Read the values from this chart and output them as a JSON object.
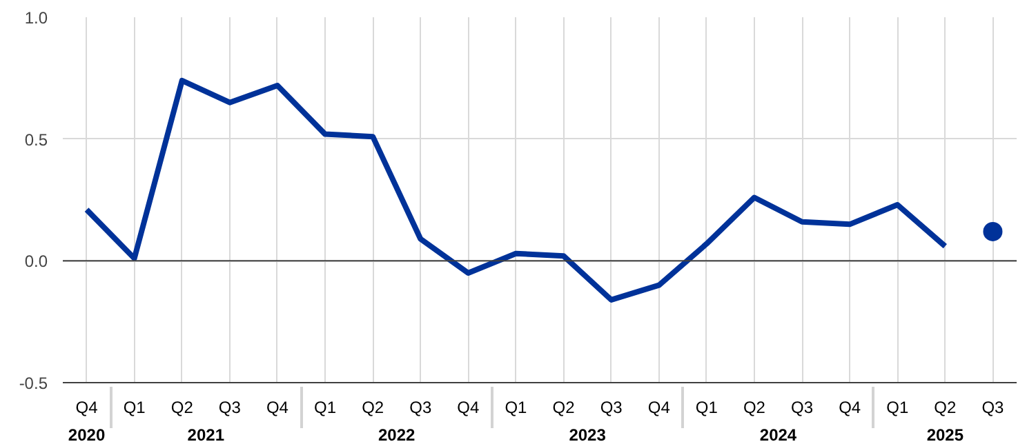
{
  "chart_data": {
    "type": "line",
    "categories": [
      "Q4",
      "Q1",
      "Q2",
      "Q3",
      "Q4",
      "Q1",
      "Q2",
      "Q3",
      "Q4",
      "Q1",
      "Q2",
      "Q3",
      "Q4",
      "Q1",
      "Q2",
      "Q3",
      "Q4",
      "Q1",
      "Q2",
      "Q3"
    ],
    "annotations": [
      "2020",
      "2021",
      "2022",
      "2023",
      "2024",
      "2025"
    ],
    "series": [
      {
        "type": "line",
        "color": "#003299",
        "values": [
          0.21,
          0.01,
          0.74,
          0.65,
          0.72,
          0.52,
          0.51,
          0.09,
          -0.05,
          0.03,
          0.02,
          -0.16,
          -0.1,
          0.07,
          0.26,
          0.16,
          0.15,
          0.23,
          0.06,
          null
        ]
      },
      {
        "type": "scatter",
        "color": "#003299",
        "marker": "circle",
        "values": [
          null,
          null,
          null,
          null,
          null,
          null,
          null,
          null,
          null,
          null,
          null,
          null,
          null,
          null,
          null,
          null,
          null,
          null,
          null,
          0.12
        ]
      }
    ],
    "ylim": [
      -0.5,
      1.0
    ],
    "yticks": [
      {
        "value": -0.5,
        "label": "-0.5"
      },
      {
        "value": 0,
        "label": "0.0"
      },
      {
        "value": 0.5,
        "label": "0.5"
      },
      {
        "value": 1.0,
        "label": "1.0"
      }
    ],
    "ref_lines": [
      {
        "axis": "y",
        "value": 0,
        "color": "#404040"
      }
    ],
    "grid": true
  }
}
